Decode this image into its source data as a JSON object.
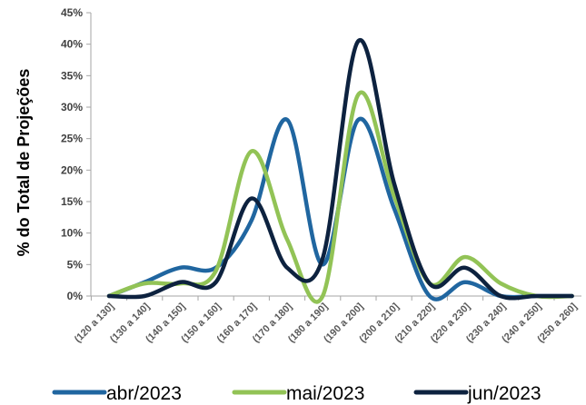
{
  "chart_data": {
    "type": "line",
    "title": "",
    "xlabel": "",
    "ylabel": "% do Total de Projeções",
    "ylim": [
      0,
      45
    ],
    "yticks": [
      0,
      5,
      10,
      15,
      20,
      25,
      30,
      35,
      40,
      45
    ],
    "ytick_labels": [
      "0%",
      "5%",
      "10%",
      "15%",
      "20%",
      "25%",
      "30%",
      "35%",
      "40%",
      "45%"
    ],
    "grid": false,
    "smooth": true,
    "legend_position": "bottom",
    "categories": [
      "(120 a 130]",
      "(130 a 140]",
      "(140 a 150]",
      "(150 a 160]",
      "(160 a 170]",
      "(170 a 180]",
      "(180 a 190]",
      "(190 a 200]",
      "(200 a 210]",
      "(210 a 220]",
      "(220 a 230]",
      "(230 a 240]",
      "(240 a 250]",
      "(250 a 260]"
    ],
    "series": [
      {
        "name": "abr/2023",
        "color": "#2066a0",
        "values": [
          0,
          2.2,
          4.5,
          4.5,
          12,
          28,
          5,
          28,
          14,
          0,
          2.2,
          0,
          0,
          0
        ]
      },
      {
        "name": "mai/2023",
        "color": "#92c356",
        "values": [
          0,
          2,
          2,
          4,
          23,
          9,
          0,
          32,
          16,
          2,
          6.2,
          2,
          0,
          0
        ]
      },
      {
        "name": "jun/2023",
        "color": "#0d223f",
        "values": [
          0,
          0,
          2.2,
          2.2,
          15.5,
          4.5,
          6,
          40.5,
          18,
          2,
          4.5,
          0,
          0,
          0
        ]
      }
    ]
  }
}
